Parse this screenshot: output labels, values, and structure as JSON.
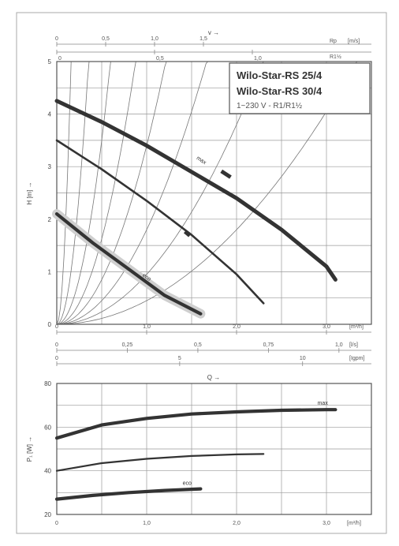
{
  "chart_data": [
    {
      "type": "line",
      "title": "",
      "legend_box": {
        "line1": "Wilo-Star-RS 25/4",
        "line2": "Wilo-Star-RS 30/4",
        "line3": "1~230 V - R1/R1½"
      },
      "ylabel": "H [m] →",
      "ylim": [
        0,
        5
      ],
      "yticks": [
        "0",
        "1",
        "2",
        "3",
        "4",
        "5"
      ],
      "xlim": [
        0,
        3.5
      ],
      "x_axes": [
        {
          "unit": "[m³/h]",
          "ticks": [
            {
              "v": 0,
              "t": "0"
            },
            {
              "v": 1,
              "t": "1,0"
            },
            {
              "v": 2,
              "t": "2,0"
            },
            {
              "v": 3,
              "t": "3,0"
            }
          ]
        },
        {
          "unit": "[l/s]",
          "ticks": [
            {
              "v": 0,
              "t": "0"
            },
            {
              "v": 0.25,
              "t": "0,25"
            },
            {
              "v": 0.5,
              "t": "0,5"
            },
            {
              "v": 0.75,
              "t": "0,75"
            },
            {
              "v": 1.0,
              "t": "1,0"
            }
          ]
        },
        {
          "unit": "[Igpm]",
          "ticks": [
            {
              "v": 0,
              "t": "0"
            },
            {
              "v": 5,
              "t": "5"
            },
            {
              "v": 10,
              "t": "10"
            }
          ]
        }
      ],
      "top_axis": {
        "title": "v →",
        "unit_top": "[m/s]",
        "label_top": "Rp",
        "label_bottom": "R1½",
        "ticks_top": [
          "0",
          "0,5",
          "1,0",
          "1,5"
        ],
        "ticks_bottom": [
          "0",
          "0,5",
          "1,0"
        ]
      },
      "series": [
        {
          "label": "max",
          "x": [
            0,
            0.5,
            1.0,
            1.5,
            2.0,
            2.5,
            3.0,
            3.1
          ],
          "y": [
            4.25,
            3.85,
            3.4,
            2.9,
            2.4,
            1.8,
            1.1,
            0.85
          ]
        },
        {
          "label": "",
          "x": [
            0,
            0.5,
            1.0,
            1.5,
            2.0,
            2.3
          ],
          "y": [
            3.5,
            2.95,
            2.35,
            1.7,
            0.95,
            0.4
          ]
        },
        {
          "label": "eco",
          "x": [
            0,
            0.4,
            0.8,
            1.2,
            1.6
          ],
          "y": [
            2.1,
            1.55,
            1.05,
            0.55,
            0.2
          ]
        }
      ]
    },
    {
      "type": "line",
      "title": "Q →",
      "ylabel": "P₁ [W] →",
      "ylim": [
        20,
        80
      ],
      "yticks": [
        "20",
        "40",
        "60",
        "80"
      ],
      "xlim": [
        0,
        3.5
      ],
      "xticks": [
        "0",
        "1,0",
        "2,0",
        "3,0"
      ],
      "xunit": "[m³/h]",
      "series": [
        {
          "label": "max",
          "x": [
            0,
            0.5,
            1.0,
            1.5,
            2.0,
            2.5,
            3.0,
            3.1
          ],
          "y": [
            55,
            61,
            64,
            66,
            67,
            67.7,
            68,
            68
          ]
        },
        {
          "label": "",
          "x": [
            0,
            0.5,
            1.0,
            1.5,
            2.0,
            2.3
          ],
          "y": [
            40,
            43.5,
            45.5,
            46.8,
            47.5,
            47.7
          ]
        },
        {
          "label": "eco",
          "x": [
            0,
            0.4,
            0.8,
            1.2,
            1.6
          ],
          "y": [
            27,
            28.7,
            30,
            31,
            31.7
          ]
        }
      ]
    }
  ]
}
